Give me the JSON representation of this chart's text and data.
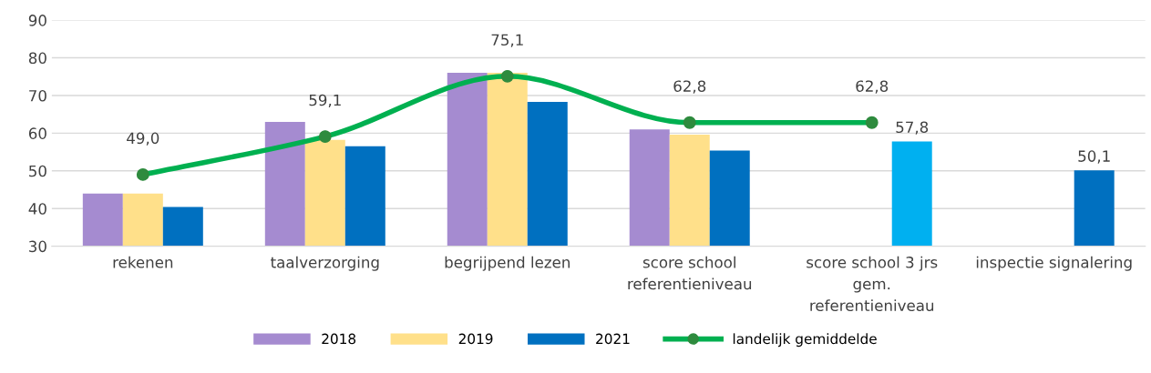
{
  "chart_data": {
    "type": "bar",
    "categories": [
      "rekenen",
      "taalverzorging",
      "begrijpend lezen",
      "score school\nreferentieniveau",
      "score school 3 jrs\ngem.\nreferentieniveau",
      "inspectie signalering"
    ],
    "series": [
      {
        "name": "2018",
        "color": "#a58bd0",
        "values": [
          44,
          63,
          76,
          61,
          null,
          null
        ]
      },
      {
        "name": "2019",
        "color": "#ffe08a",
        "values": [
          44,
          58.2,
          76,
          59.6,
          null,
          null
        ]
      },
      {
        "name": "2021",
        "color": "#0070c0",
        "colors": [
          "#0070c0",
          "#0070c0",
          "#0070c0",
          "#0070c0",
          "#00b0f0",
          "#0070c0"
        ],
        "values": [
          40.4,
          56.5,
          68.3,
          55.4,
          57.8,
          50.1
        ],
        "value_labels": [
          null,
          null,
          null,
          null,
          "57,8",
          "50,1"
        ]
      },
      {
        "name": "landelijk gemiddelde",
        "type": "line",
        "color": "#00b050",
        "marker": "circle",
        "values": [
          49.0,
          59.1,
          75.1,
          62.8,
          62.8,
          null
        ],
        "value_labels": [
          "49,0",
          "59,1",
          "75,1",
          "62,8",
          "62,8",
          null
        ]
      }
    ],
    "ylim": [
      30,
      90
    ],
    "yticks": [
      30,
      40,
      50,
      60,
      70,
      80,
      90
    ],
    "grid": "y",
    "legend": "bottom"
  }
}
